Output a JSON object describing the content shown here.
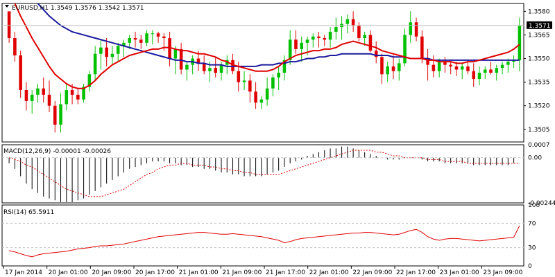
{
  "colors": {
    "background": "#ffffff",
    "grid": "#c0c0c0",
    "bull": "#00c000",
    "bear": "#e00000",
    "ma_fast": "#e00000",
    "ma_slow": "#1a1aa0",
    "macd_hist": "#000000",
    "macd_signal": "#e00000",
    "rsi": "#e00000",
    "price_tag_bg": "#000000"
  },
  "main": {
    "title": "EURUSD,H1  1.3549 1.3576 1.3542 1.3571",
    "price_ticks": [
      "1.3580",
      "1.3565",
      "1.3550",
      "1.3535",
      "1.3520",
      "1.3505"
    ],
    "current_price": "1.3571"
  },
  "macd": {
    "title": "MACD(12,26,9) -0.00001 -0.00026",
    "ticks": [
      "0.0007",
      "0.00",
      "-0.00244"
    ]
  },
  "rsi": {
    "title": "RSI(14) 65.5911",
    "ticks": [
      "100",
      "70",
      "30",
      "0"
    ]
  },
  "time_labels": [
    "17 Jan 2014",
    "20 Jan 01:00",
    "20 Jan 09:00",
    "20 Jan 17:00",
    "21 Jan 01:00",
    "21 Jan 09:00",
    "21 Jan 17:00",
    "22 Jan 01:00",
    "22 Jan 09:00",
    "22 Jan 17:00",
    "23 Jan 01:00",
    "23 Jan 09:00"
  ],
  "chart_data": [
    {
      "type": "candlestick",
      "title": "EURUSD,H1  1.3549 1.3576 1.3542 1.3571",
      "y_range": [
        1.3497,
        1.3585
      ],
      "overlays": [
        "moving average (red)",
        "moving average (blue)"
      ],
      "candles_ohlc": [
        [
          1.358,
          1.358,
          1.356,
          1.3563
        ],
        [
          1.3563,
          1.3567,
          1.3548,
          1.3552
        ],
        [
          1.3552,
          1.3555,
          1.3525,
          1.353
        ],
        [
          1.353,
          1.3535,
          1.3517,
          1.3523
        ],
        [
          1.3523,
          1.353,
          1.3515,
          1.3527
        ],
        [
          1.3527,
          1.3534,
          1.3522,
          1.3531
        ],
        [
          1.3531,
          1.3538,
          1.3522,
          1.3527
        ],
        [
          1.3527,
          1.3536,
          1.3516,
          1.352
        ],
        [
          1.352,
          1.3523,
          1.3503,
          1.3508
        ],
        [
          1.3508,
          1.3528,
          1.3503,
          1.3521
        ],
        [
          1.3521,
          1.3534,
          1.3517,
          1.353
        ],
        [
          1.353,
          1.3534,
          1.3521,
          1.3527
        ],
        [
          1.3527,
          1.3531,
          1.3521,
          1.3524
        ],
        [
          1.3524,
          1.3534,
          1.3522,
          1.3532
        ],
        [
          1.3532,
          1.3542,
          1.3529,
          1.354
        ],
        [
          1.354,
          1.3558,
          1.3536,
          1.3553
        ],
        [
          1.3553,
          1.3562,
          1.3543,
          1.3557
        ],
        [
          1.3557,
          1.3563,
          1.3545,
          1.3551
        ],
        [
          1.3551,
          1.3558,
          1.3546,
          1.3553
        ],
        [
          1.3553,
          1.356,
          1.3548,
          1.3558
        ],
        [
          1.3558,
          1.3562,
          1.3551,
          1.356
        ],
        [
          1.356,
          1.3565,
          1.3556,
          1.3563
        ],
        [
          1.3563,
          1.3567,
          1.3557,
          1.3562
        ],
        [
          1.3562,
          1.3565,
          1.3556,
          1.356
        ],
        [
          1.356,
          1.3568,
          1.3558,
          1.3566
        ],
        [
          1.3566,
          1.3568,
          1.3559,
          1.3566
        ],
        [
          1.3566,
          1.3567,
          1.356,
          1.3564
        ],
        [
          1.3564,
          1.3566,
          1.3555,
          1.3563
        ],
        [
          1.3563,
          1.3567,
          1.3545,
          1.355
        ],
        [
          1.355,
          1.3558,
          1.354,
          1.3556
        ],
        [
          1.3556,
          1.356,
          1.354,
          1.3543
        ],
        [
          1.3543,
          1.3548,
          1.3536,
          1.3546
        ],
        [
          1.3546,
          1.3552,
          1.354,
          1.355
        ],
        [
          1.355,
          1.3555,
          1.3542,
          1.3547
        ],
        [
          1.3547,
          1.3552,
          1.354,
          1.3542
        ],
        [
          1.3542,
          1.3548,
          1.3535,
          1.3544
        ],
        [
          1.3544,
          1.3551,
          1.3538,
          1.3541
        ],
        [
          1.3541,
          1.3548,
          1.3536,
          1.3546
        ],
        [
          1.3546,
          1.3552,
          1.354,
          1.3549
        ],
        [
          1.3549,
          1.3553,
          1.354,
          1.3542
        ],
        [
          1.3542,
          1.3548,
          1.3529,
          1.3535
        ],
        [
          1.3535,
          1.3542,
          1.353,
          1.3536
        ],
        [
          1.3536,
          1.354,
          1.3522,
          1.3529
        ],
        [
          1.3529,
          1.3535,
          1.3518,
          1.3522
        ],
        [
          1.3522,
          1.3526,
          1.3518,
          1.3524
        ],
        [
          1.3524,
          1.3538,
          1.352,
          1.3531
        ],
        [
          1.3531,
          1.354,
          1.3526,
          1.3538
        ],
        [
          1.3538,
          1.3545,
          1.353,
          1.3541
        ],
        [
          1.3541,
          1.3552,
          1.3536,
          1.3549
        ],
        [
          1.3549,
          1.3568,
          1.3546,
          1.3562
        ],
        [
          1.3562,
          1.3568,
          1.3553,
          1.3556
        ],
        [
          1.3556,
          1.3564,
          1.3548,
          1.356
        ],
        [
          1.356,
          1.3564,
          1.3552,
          1.3562
        ],
        [
          1.3562,
          1.3566,
          1.3557,
          1.3564
        ],
        [
          1.3564,
          1.3567,
          1.3557,
          1.3563
        ],
        [
          1.3563,
          1.3565,
          1.3558,
          1.3562
        ],
        [
          1.3562,
          1.357,
          1.3557,
          1.3567
        ],
        [
          1.3567,
          1.3576,
          1.3562,
          1.357
        ],
        [
          1.357,
          1.3577,
          1.3562,
          1.3572
        ],
        [
          1.3572,
          1.3578,
          1.3566,
          1.3575
        ],
        [
          1.3575,
          1.358,
          1.3567,
          1.3571
        ],
        [
          1.3571,
          1.3573,
          1.3561,
          1.3563
        ],
        [
          1.3563,
          1.3567,
          1.3558,
          1.3565
        ],
        [
          1.3565,
          1.3568,
          1.3554,
          1.3555
        ],
        [
          1.3555,
          1.3561,
          1.3547,
          1.3551
        ],
        [
          1.3551,
          1.3553,
          1.3534,
          1.354
        ],
        [
          1.354,
          1.3548,
          1.3535,
          1.3545
        ],
        [
          1.3545,
          1.3552,
          1.3537,
          1.3542
        ],
        [
          1.3542,
          1.355,
          1.3536,
          1.3547
        ],
        [
          1.3547,
          1.3569,
          1.3545,
          1.3565
        ],
        [
          1.3565,
          1.358,
          1.356,
          1.3573
        ],
        [
          1.3573,
          1.3576,
          1.3561,
          1.3564
        ],
        [
          1.3564,
          1.3568,
          1.3547,
          1.355
        ],
        [
          1.355,
          1.3556,
          1.3536,
          1.3546
        ],
        [
          1.3546,
          1.3552,
          1.3538,
          1.3542
        ],
        [
          1.3542,
          1.355,
          1.3538,
          1.3548
        ],
        [
          1.3548,
          1.3551,
          1.3541,
          1.3546
        ],
        [
          1.3546,
          1.3549,
          1.354,
          1.3545
        ],
        [
          1.3545,
          1.3548,
          1.3539,
          1.3543
        ],
        [
          1.3543,
          1.3547,
          1.3537,
          1.3545
        ],
        [
          1.3545,
          1.3548,
          1.354,
          1.3542
        ],
        [
          1.3542,
          1.3547,
          1.3532,
          1.3537
        ],
        [
          1.3537,
          1.3545,
          1.3533,
          1.3541
        ],
        [
          1.3541,
          1.3545,
          1.3537,
          1.3543
        ],
        [
          1.3543,
          1.3548,
          1.354,
          1.3541
        ],
        [
          1.3541,
          1.3546,
          1.3536,
          1.3544
        ],
        [
          1.3544,
          1.3548,
          1.354,
          1.3546
        ],
        [
          1.3546,
          1.355,
          1.3541,
          1.3548
        ],
        [
          1.3548,
          1.3552,
          1.3544,
          1.3549
        ],
        [
          1.3549,
          1.3576,
          1.3542,
          1.3571
        ]
      ],
      "ma_fast_values": [
        1.3592,
        1.3585,
        1.3577,
        1.357,
        1.3563,
        1.3557,
        1.3551,
        1.3545,
        1.354,
        1.3537,
        1.3534,
        1.3532,
        1.3531,
        1.3531,
        1.3533,
        1.3536,
        1.354,
        1.3543,
        1.3546,
        1.3548,
        1.355,
        1.3552,
        1.3553,
        1.3554,
        1.3555,
        1.3556,
        1.3556,
        1.3557,
        1.3557,
        1.3556,
        1.3555,
        1.3555,
        1.3554,
        1.3553,
        1.3553,
        1.3552,
        1.3551,
        1.3549,
        1.3548,
        1.3546,
        1.3545,
        1.3544,
        1.3543,
        1.3542,
        1.3542,
        1.3542,
        1.3543,
        1.3545,
        1.3548,
        1.355,
        1.3552,
        1.3553,
        1.3554,
        1.3555,
        1.3555,
        1.3556,
        1.3556,
        1.3557,
        1.3559,
        1.356,
        1.3561,
        1.356,
        1.3559,
        1.3558,
        1.3557,
        1.3555,
        1.3554,
        1.3553,
        1.3552,
        1.3551,
        1.355,
        1.355,
        1.355,
        1.3549,
        1.3549,
        1.3548,
        1.3548,
        1.3548,
        1.3547,
        1.3547,
        1.3548,
        1.3548,
        1.3549,
        1.355,
        1.3551,
        1.3552,
        1.3553,
        1.3554,
        1.3556,
        1.3559
      ],
      "ma_slow_values": [
        1.361,
        1.3605,
        1.36,
        1.3595,
        1.359,
        1.3585,
        1.3581,
        1.3577,
        1.3574,
        1.3571,
        1.3569,
        1.3567,
        1.3566,
        1.3565,
        1.3564,
        1.3563,
        1.3562,
        1.3561,
        1.356,
        1.3559,
        1.3558,
        1.3557,
        1.3556,
        1.3555,
        1.3554,
        1.3553,
        1.3552,
        1.3551,
        1.355,
        1.3549,
        1.3549,
        1.3548,
        1.3548,
        1.3547,
        1.3547,
        1.3546,
        1.3546,
        1.3546,
        1.3545,
        1.3545,
        1.3545,
        1.3545,
        1.3545,
        1.3545,
        1.3546,
        1.3546,
        1.3546,
        1.3547,
        1.3547,
        1.3548,
        1.3548,
        1.3549,
        1.355,
        1.355,
        1.3551,
        1.3551,
        1.3552,
        1.3552,
        1.3553,
        1.3553,
        1.3553,
        1.3553,
        1.3553,
        1.3553,
        1.3552,
        1.3552,
        1.3552,
        1.3551,
        1.3551,
        1.3551,
        1.355,
        1.355,
        1.355,
        1.355,
        1.3549,
        1.3549,
        1.3549,
        1.3549,
        1.3549,
        1.3549,
        1.3549,
        1.3549,
        1.3549,
        1.3549,
        1.3549,
        1.3549,
        1.3549,
        1.3549,
        1.3549,
        1.3549
      ]
    },
    {
      "type": "bar",
      "title": "MACD(12,26,9) -0.00001 -0.00026",
      "y_range": [
        -0.00244,
        0.0007
      ],
      "histogram": [
        -0.0003,
        -0.0006,
        -0.001,
        -0.0014,
        -0.0017,
        -0.0019,
        -0.0021,
        -0.0022,
        -0.0023,
        -0.0024,
        -0.0024,
        -0.0024,
        -0.0023,
        -0.0022,
        -0.002,
        -0.0018,
        -0.0016,
        -0.0014,
        -0.0012,
        -0.001,
        -0.0008,
        -0.0006,
        -0.0005,
        -0.0004,
        -0.0003,
        -0.0002,
        -0.0002,
        -0.0002,
        -0.0003,
        -0.0003,
        -0.0004,
        -0.0004,
        -0.0005,
        -0.0005,
        -0.0006,
        -0.0006,
        -0.0007,
        -0.0008,
        -0.0008,
        -0.0009,
        -0.0009,
        -0.001,
        -0.001,
        -0.001,
        -0.001,
        -0.0009,
        -0.0008,
        -0.0007,
        -0.0005,
        -0.0003,
        -0.0002,
        -0.0001,
        0.0001,
        0.0002,
        0.0003,
        0.0004,
        0.0005,
        0.0005,
        0.0006,
        0.0006,
        0.0005,
        0.0004,
        0.0003,
        0.0002,
        0.0001,
        0.0,
        -0.0001,
        -0.0001,
        -0.0001,
        0.0,
        0.0,
        0.0,
        -0.0001,
        -0.0002,
        -0.0002,
        -0.0002,
        -0.0003,
        -0.0003,
        -0.0003,
        -0.0003,
        -0.0003,
        -0.0004,
        -0.0004,
        -0.0004,
        -0.0004,
        -0.0004,
        -0.0004,
        -0.0004,
        -0.0003,
        0.0
      ],
      "signal": [
        0.0,
        -0.0001,
        -0.0002,
        -0.0004,
        -0.0005,
        -0.0007,
        -0.0009,
        -0.0011,
        -0.0013,
        -0.0015,
        -0.0017,
        -0.0018,
        -0.0019,
        -0.002,
        -0.0021,
        -0.0021,
        -0.0021,
        -0.002,
        -0.0019,
        -0.0018,
        -0.0017,
        -0.0015,
        -0.0013,
        -0.0011,
        -0.0009,
        -0.0008,
        -0.0006,
        -0.0005,
        -0.0004,
        -0.0004,
        -0.0003,
        -0.0003,
        -0.0004,
        -0.0004,
        -0.0004,
        -0.0005,
        -0.0005,
        -0.0006,
        -0.0006,
        -0.0007,
        -0.0007,
        -0.0008,
        -0.0008,
        -0.0009,
        -0.0009,
        -0.0009,
        -0.0009,
        -0.0009,
        -0.0008,
        -0.0007,
        -0.0006,
        -0.0005,
        -0.0004,
        -0.0003,
        -0.0002,
        -0.0001,
        0.0,
        0.0001,
        0.0002,
        0.0003,
        0.0004,
        0.0004,
        0.0004,
        0.0004,
        0.0003,
        0.0003,
        0.0002,
        0.0001,
        0.0001,
        0.0,
        0.0,
        0.0,
        0.0,
        -0.0001,
        -0.0001,
        -0.0001,
        -0.0002,
        -0.0002,
        -0.0002,
        -0.0002,
        -0.0003,
        -0.0003,
        -0.0003,
        -0.0003,
        -0.0003,
        -0.0003,
        -0.0003,
        -0.0003,
        -0.0003,
        -0.0003
      ]
    },
    {
      "type": "line",
      "title": "RSI(14) 65.5911",
      "y_range": [
        0,
        100
      ],
      "levels": [
        70,
        30
      ],
      "values": [
        25,
        23,
        20,
        17,
        15,
        18,
        20,
        21,
        22,
        23,
        24,
        26,
        28,
        29,
        30,
        32,
        33,
        33,
        34,
        35,
        36,
        38,
        40,
        42,
        44,
        46,
        48,
        49,
        50,
        51,
        52,
        53,
        54,
        55,
        55,
        54,
        53,
        52,
        52,
        53,
        52,
        51,
        50,
        49,
        48,
        46,
        44,
        42,
        38,
        40,
        43,
        45,
        46,
        47,
        48,
        49,
        50,
        51,
        52,
        53,
        54,
        54,
        55,
        55,
        54,
        53,
        52,
        51,
        52,
        55,
        58,
        60,
        55,
        48,
        44,
        42,
        44,
        45,
        45,
        44,
        43,
        42,
        41,
        42,
        43,
        44,
        45,
        46,
        47,
        66
      ]
    }
  ]
}
